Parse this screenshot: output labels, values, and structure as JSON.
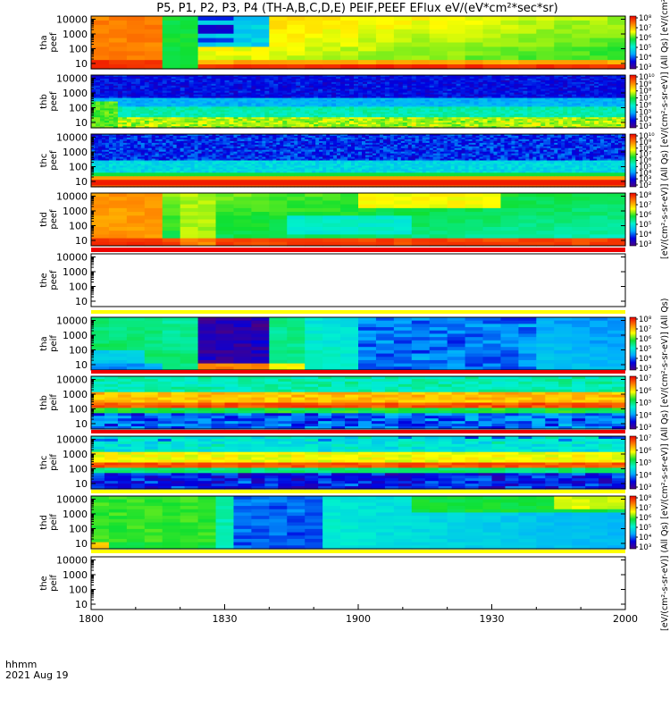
{
  "title": "P5, P1, P2, P3, P4 (TH-A,B,C,D,E) PEIF,PEEF EFlux eV/(eV*cm²*sec*sr)",
  "time_axis": {
    "unit_label": "hhmm",
    "date_label": "2021 Aug 19",
    "tick_labels": [
      "1800",
      "1830",
      "1900",
      "1930",
      "2000"
    ]
  },
  "colorbar_titles": {
    "upper": "[eV/(cm²-s-sr-eV)] (All Qs) [eV/(cm²-s-sr-eV)] (All Qs) [eV/(cm²-s-sr-eV)] (All Qs)",
    "lower": "[eV/(cm²-s-sr-eV)] (All Qs) [eV/(cm²-s-sr-eV)] (All Qs) [eV/(cm²-s-sr-eV)] (All Qs)"
  },
  "chart_data": {
    "type": "heatmap",
    "x": {
      "label": "hhmm",
      "range": [
        "18:00",
        "20:00"
      ],
      "ticks": [
        "1800",
        "1830",
        "1900",
        "1930",
        "2000"
      ]
    },
    "y_scale": "log",
    "y_tick_labels": [
      "10",
      "100",
      "1000",
      "10000"
    ],
    "panels": [
      {
        "id": "tha_peef",
        "label_top": "tha",
        "label_bottom": "peef",
        "species": "electron",
        "colorbar_ticks": [
          "10³",
          "10⁴",
          "10⁵",
          "10⁶",
          "10⁷",
          "10⁸"
        ],
        "has_data": true
      },
      {
        "id": "thb_peef",
        "label_top": "thb",
        "label_bottom": "peef",
        "species": "electron",
        "colorbar_ticks": [
          "10³",
          "10⁴",
          "10⁵",
          "10⁶",
          "10⁷",
          "10⁸",
          "10⁹",
          "10¹⁰"
        ],
        "has_data": true
      },
      {
        "id": "thc_peef",
        "label_top": "thc",
        "label_bottom": "peef",
        "species": "electron",
        "colorbar_ticks": [
          "10²",
          "10³",
          "10⁴",
          "10⁵",
          "10⁶",
          "10⁷",
          "10⁸",
          "10⁹",
          "10¹⁰"
        ],
        "has_data": true
      },
      {
        "id": "thd_peef",
        "label_top": "thd",
        "label_bottom": "peef",
        "species": "electron",
        "colorbar_ticks": [
          "10³",
          "10⁴",
          "10⁵",
          "10⁶",
          "10⁷",
          "10⁸"
        ],
        "has_data": true
      },
      {
        "id": "the_peef",
        "label_top": "the",
        "label_bottom": "peef",
        "species": "electron",
        "colorbar_ticks": [],
        "has_data": false
      },
      {
        "id": "tha_peif",
        "label_top": "tha",
        "label_bottom": "peif",
        "species": "ion",
        "colorbar_ticks": [
          "10³",
          "10⁴",
          "10⁵",
          "10⁶",
          "10⁷",
          "10⁸"
        ],
        "has_data": true
      },
      {
        "id": "thb_peif",
        "label_top": "thb",
        "label_bottom": "peif",
        "species": "ion",
        "colorbar_ticks": [
          "10³",
          "10⁴",
          "10⁵",
          "10⁶",
          "10⁷"
        ],
        "has_data": true
      },
      {
        "id": "thc_peif",
        "label_top": "thc",
        "label_bottom": "peif",
        "species": "ion",
        "colorbar_ticks": [
          "10³",
          "10⁴",
          "10⁵",
          "10⁶",
          "10⁷"
        ],
        "has_data": true
      },
      {
        "id": "thd_peif",
        "label_top": "thd",
        "label_bottom": "peif",
        "species": "ion",
        "colorbar_ticks": [
          "10³",
          "10⁴",
          "10⁵",
          "10⁶",
          "10⁷",
          "10⁸"
        ],
        "has_data": true
      },
      {
        "id": "the_peif",
        "label_top": "the",
        "label_bottom": "peif",
        "species": "ion",
        "colorbar_ticks": [],
        "has_data": false
      }
    ]
  }
}
